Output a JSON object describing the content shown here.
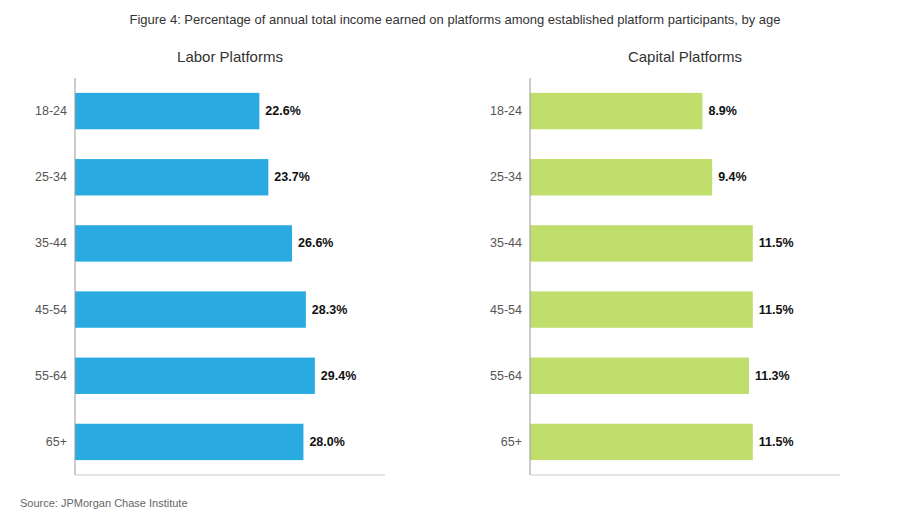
{
  "title": "Figure 4: Percentage of annual total income earned on platforms among established platform participants, by age",
  "annotations": [
    "Source: JPMorgan Chase Institute"
  ],
  "chart_data": [
    {
      "type": "bar",
      "orientation": "horizontal",
      "title": "Labor Platforms",
      "categories": [
        "18-24",
        "25-34",
        "35-44",
        "45-54",
        "55-64",
        "65+"
      ],
      "values": [
        22.6,
        23.7,
        26.6,
        28.3,
        29.4,
        28.0
      ],
      "value_labels": [
        "22.6%",
        "23.7%",
        "26.6%",
        "28.3%",
        "29.4%",
        "28.0%"
      ],
      "color": "#29ABE2",
      "xlim": [
        0,
        38
      ],
      "data_labels": true,
      "tick_labels": "y",
      "grid": false
    },
    {
      "type": "bar",
      "orientation": "horizontal",
      "title": "Capital Platforms",
      "categories": [
        "18-24",
        "25-34",
        "35-44",
        "45-54",
        "55-64",
        "65+"
      ],
      "values": [
        8.9,
        9.4,
        11.5,
        11.5,
        11.3,
        11.5
      ],
      "value_labels": [
        "8.9%",
        "9.4%",
        "11.5%",
        "11.5%",
        "11.3%",
        "11.5%"
      ],
      "color": "#BFDE6B",
      "xlim": [
        0,
        16
      ],
      "data_labels": true,
      "tick_labels": "y",
      "grid": false
    }
  ]
}
